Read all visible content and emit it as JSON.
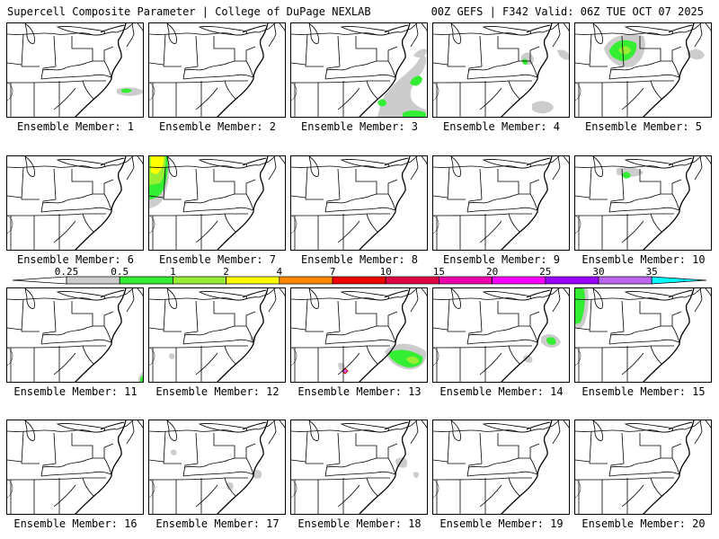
{
  "header": {
    "left": "Supercell Composite Parameter | College of DuPage NEXLAB",
    "right": "00Z GEFS | F342 Valid: 06Z TUE OCT 07 2025"
  },
  "colors": {
    "light_gray": "#cccccc",
    "bright_green": "#33ee33",
    "light_green": "#99ee33",
    "yellow": "#ffff00",
    "orange": "#ff8800",
    "red": "#ee0000",
    "crimson": "#dd0044",
    "magenta": "#ee00aa",
    "pink": "#ff00ff",
    "purple": "#9900ff",
    "violet": "#bb66ee",
    "cyan": "#00ffff"
  },
  "colorbar": {
    "labels": [
      "0.25",
      "0.5",
      "1",
      "2",
      "4",
      "7",
      "10",
      "15",
      "20",
      "25",
      "30",
      "35"
    ],
    "segments": [
      "#ffffff",
      "#cccccc",
      "#33ee33",
      "#99ee33",
      "#ffff00",
      "#ff8800",
      "#ee0000",
      "#dd0044",
      "#ee00aa",
      "#ff00ff",
      "#9900ff",
      "#bb66ee",
      "#00ffff"
    ]
  },
  "members": [
    {
      "label": "Ensemble Member: 1"
    },
    {
      "label": "Ensemble Member: 2"
    },
    {
      "label": "Ensemble Member: 3"
    },
    {
      "label": "Ensemble Member: 4"
    },
    {
      "label": "Ensemble Member: 5"
    },
    {
      "label": "Ensemble Member: 6"
    },
    {
      "label": "Ensemble Member: 7"
    },
    {
      "label": "Ensemble Member: 8"
    },
    {
      "label": "Ensemble Member: 9"
    },
    {
      "label": "Ensemble Member: 10"
    },
    {
      "label": "Ensemble Member: 11"
    },
    {
      "label": "Ensemble Member: 12"
    },
    {
      "label": "Ensemble Member: 13"
    },
    {
      "label": "Ensemble Member: 14"
    },
    {
      "label": "Ensemble Member: 15"
    },
    {
      "label": "Ensemble Member: 16"
    },
    {
      "label": "Ensemble Member: 17"
    },
    {
      "label": "Ensemble Member: 18"
    },
    {
      "label": "Ensemble Member: 19"
    },
    {
      "label": "Ensemble Member: 20"
    }
  ]
}
